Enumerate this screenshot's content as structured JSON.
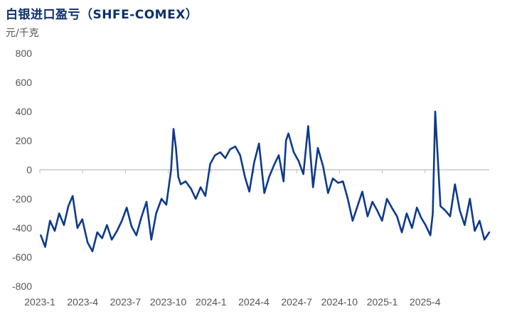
{
  "chart_data": {
    "type": "line",
    "title": "白银进口盈亏（SHFE-COMEX）",
    "ylabel": "元/千克",
    "xlabel": "",
    "ylim": [
      -800,
      800
    ],
    "yticks": [
      800,
      600,
      400,
      200,
      0,
      -200,
      -400,
      -600,
      -800
    ],
    "xticks": [
      "2023-1",
      "2023-4",
      "2023-7",
      "2023-10",
      "2024-1",
      "2024-4",
      "2024-7",
      "2024-10",
      "2025-1",
      "2025-4"
    ],
    "xrange": [
      "2023-01-01",
      "2025-07-20"
    ],
    "grid": false,
    "colors": {
      "line": "#0d3a8c",
      "axis": "#bdbdbd"
    },
    "series": [
      {
        "name": "",
        "x": [
          "2023-01-03",
          "2023-01-12",
          "2023-01-22",
          "2023-02-01",
          "2023-02-10",
          "2023-02-20",
          "2023-03-01",
          "2023-03-10",
          "2023-03-20",
          "2023-03-30",
          "2023-04-10",
          "2023-04-20",
          "2023-04-30",
          "2023-05-10",
          "2023-05-20",
          "2023-05-30",
          "2023-06-10",
          "2023-06-20",
          "2023-06-30",
          "2023-07-10",
          "2023-07-20",
          "2023-07-30",
          "2023-08-10",
          "2023-08-20",
          "2023-08-30",
          "2023-09-10",
          "2023-09-20",
          "2023-09-30",
          "2023-10-05",
          "2023-10-10",
          "2023-10-15",
          "2023-10-20",
          "2023-10-30",
          "2023-11-10",
          "2023-11-20",
          "2023-11-30",
          "2023-12-10",
          "2023-12-20",
          "2023-12-30",
          "2024-01-10",
          "2024-01-20",
          "2024-01-30",
          "2024-02-10",
          "2024-02-20",
          "2024-03-01",
          "2024-03-10",
          "2024-03-20",
          "2024-03-30",
          "2024-04-10",
          "2024-04-20",
          "2024-04-30",
          "2024-05-10",
          "2024-05-20",
          "2024-05-25",
          "2024-05-30",
          "2024-06-10",
          "2024-06-20",
          "2024-06-30",
          "2024-07-10",
          "2024-07-20",
          "2024-07-30",
          "2024-08-10",
          "2024-08-20",
          "2024-08-30",
          "2024-09-10",
          "2024-09-20",
          "2024-09-30",
          "2024-10-10",
          "2024-10-20",
          "2024-10-30",
          "2024-11-10",
          "2024-11-20",
          "2024-11-30",
          "2024-12-10",
          "2024-12-20",
          "2024-12-30",
          "2025-01-10",
          "2025-01-20",
          "2025-01-30",
          "2025-02-10",
          "2025-02-20",
          "2025-03-01",
          "2025-03-10",
          "2025-03-20",
          "2025-03-25",
          "2025-03-30",
          "2025-04-10",
          "2025-04-20",
          "2025-04-30",
          "2025-05-10",
          "2025-05-20",
          "2025-05-30",
          "2025-06-10",
          "2025-06-20",
          "2025-06-30",
          "2025-07-10",
          "2025-07-20"
        ],
        "values": [
          -450,
          -530,
          -350,
          -420,
          -300,
          -380,
          -250,
          -180,
          -400,
          -340,
          -500,
          -560,
          -430,
          -470,
          -380,
          -480,
          -420,
          -350,
          -260,
          -390,
          -450,
          -330,
          -220,
          -480,
          -300,
          -200,
          -240,
          0,
          280,
          150,
          -50,
          -100,
          -80,
          -130,
          -200,
          -120,
          -180,
          40,
          100,
          120,
          80,
          140,
          160,
          100,
          -50,
          -150,
          50,
          180,
          -160,
          -50,
          30,
          100,
          -80,
          200,
          250,
          120,
          60,
          -30,
          300,
          -120,
          150,
          20,
          -160,
          -60,
          -90,
          -80,
          -200,
          -350,
          -250,
          -150,
          -320,
          -220,
          -280,
          -350,
          -200,
          -260,
          -320,
          -430,
          -300,
          -400,
          -260,
          -330,
          -380,
          -450,
          -300,
          400,
          -250,
          -280,
          -320,
          -100,
          -280,
          -380,
          -200,
          -420,
          -350,
          -480,
          -430
        ]
      }
    ]
  }
}
